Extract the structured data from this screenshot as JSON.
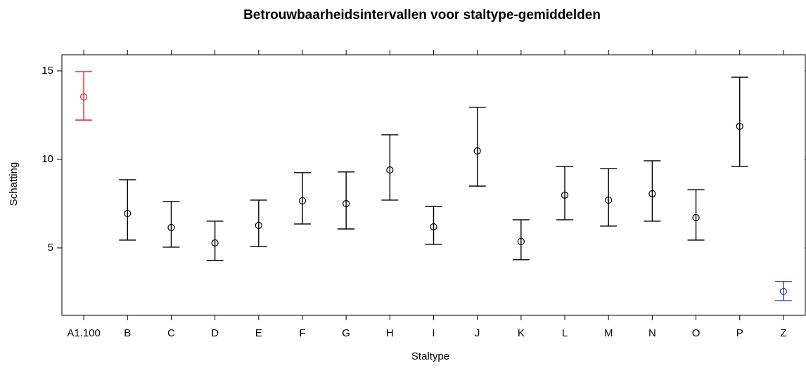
{
  "chart_data": {
    "type": "errorbar",
    "title": "Betrouwbaarheidsintervallen voor staltype-gemiddelden",
    "x_label": "Staltype",
    "y_label": "Schatting",
    "categories": [
      "A1.100",
      "B",
      "C",
      "D",
      "E",
      "F",
      "G",
      "H",
      "I",
      "J",
      "K",
      "L",
      "M",
      "N",
      "O",
      "P",
      "Z"
    ],
    "values": [
      13.53,
      6.94,
      6.15,
      5.28,
      6.27,
      7.66,
      7.5,
      9.4,
      6.19,
      10.48,
      5.36,
      7.98,
      7.7,
      8.06,
      6.71,
      11.87,
      2.54
    ],
    "lower": [
      12.22,
      5.44,
      5.04,
      4.29,
      5.08,
      6.35,
      6.07,
      7.7,
      5.2,
      8.49,
      4.33,
      6.59,
      6.23,
      6.51,
      5.44,
      9.6,
      2.02
    ],
    "upper": [
      14.96,
      8.85,
      7.62,
      6.51,
      7.7,
      9.25,
      9.29,
      11.39,
      7.34,
      12.94,
      6.59,
      9.6,
      9.48,
      9.92,
      8.29,
      14.64,
      3.1
    ],
    "colors": [
      "#e0262b",
      "#000000",
      "#000000",
      "#000000",
      "#000000",
      "#000000",
      "#000000",
      "#000000",
      "#000000",
      "#000000",
      "#000000",
      "#000000",
      "#000000",
      "#000000",
      "#000000",
      "#000000",
      "#2a3fbf"
    ],
    "ylim": [
      1.19,
      15.91
    ],
    "yticks": [
      5,
      10,
      15
    ]
  }
}
